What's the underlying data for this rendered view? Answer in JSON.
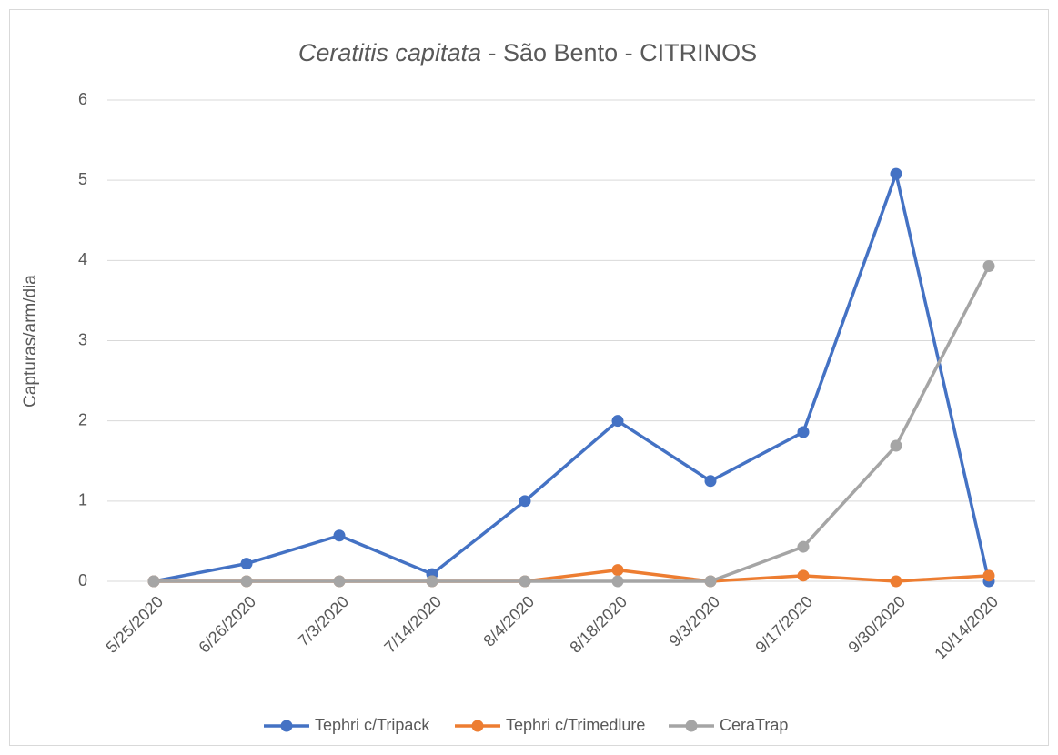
{
  "chart_data": {
    "type": "line",
    "title": {
      "species": "Ceratitis capitata",
      "rest": "- São Bento - CITRINOS"
    },
    "y_label": "Capturas/arm/dia",
    "categories": [
      "5/25/2020",
      "6/26/2020",
      "7/3/2020",
      "7/14/2020",
      "8/4/2020",
      "8/18/2020",
      "9/3/2020",
      "9/17/2020",
      "9/30/2020",
      "10/14/2020"
    ],
    "series": [
      {
        "name": "Tephri c/Tripack",
        "color": "#4472c4",
        "values": [
          0,
          0.22,
          0.57,
          0.09,
          1.0,
          2.0,
          1.25,
          1.86,
          5.08,
          0.0
        ]
      },
      {
        "name": "Tephri c/Trimedlure",
        "color": "#ed7d31",
        "values": [
          0,
          0,
          0,
          0,
          0,
          0.14,
          0,
          0.07,
          0,
          0.07
        ]
      },
      {
        "name": "CeraTrap",
        "color": "#a5a5a5",
        "values": [
          0,
          0,
          0,
          0,
          0,
          0,
          0,
          0.43,
          1.69,
          3.93
        ]
      }
    ],
    "ylim": [
      0,
      6
    ],
    "yticks": [
      0,
      1,
      2,
      3,
      4,
      5,
      6
    ],
    "grid": true,
    "legend": "bottom"
  }
}
